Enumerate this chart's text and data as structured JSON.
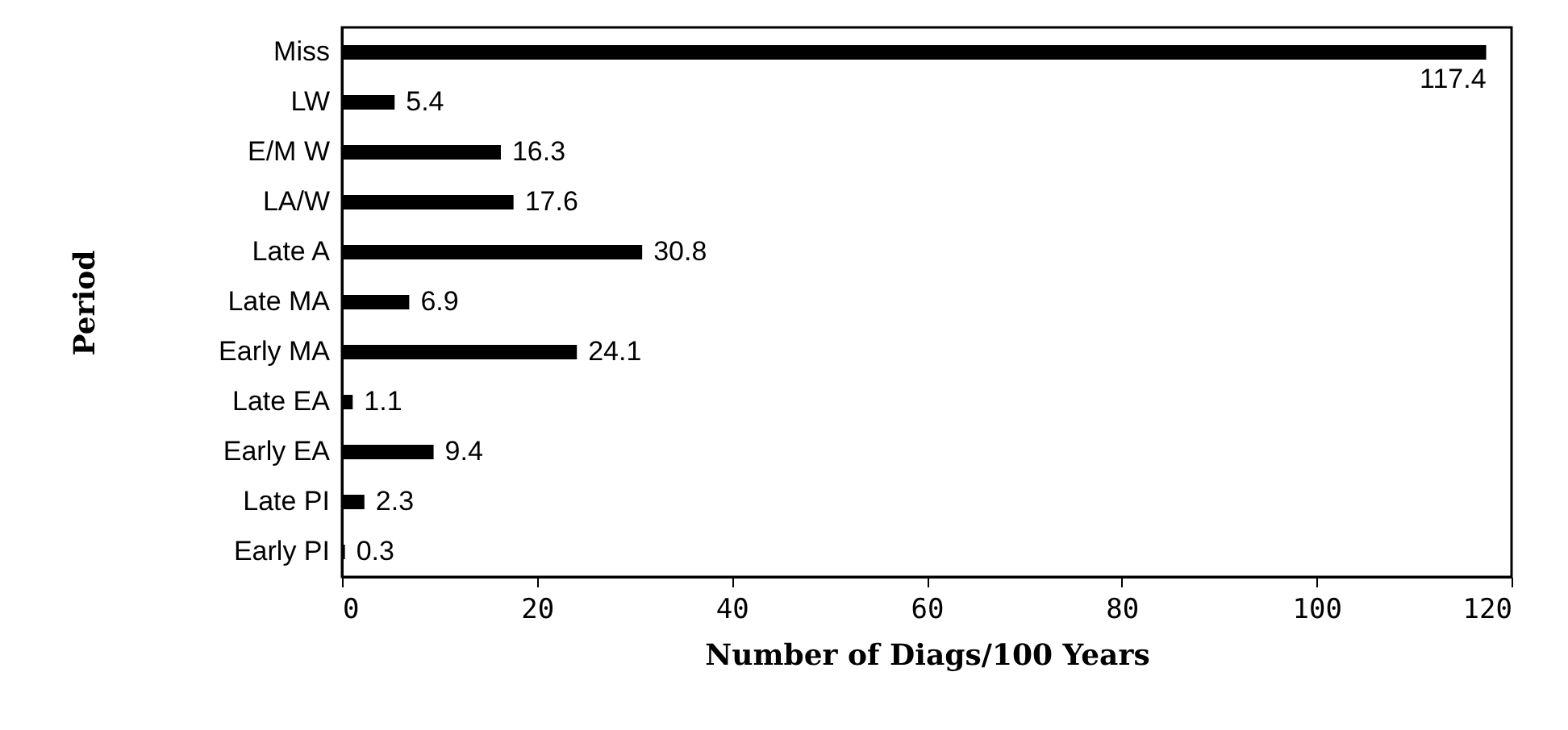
{
  "chart_data": {
    "type": "bar",
    "orientation": "horizontal",
    "xlabel": "Number of Diags/100 Years",
    "ylabel": "Period",
    "categories": [
      "Miss",
      "LW",
      "E/M W",
      "LA/W",
      "Late A",
      "Late MA",
      "Early MA",
      "Late EA",
      "Early EA",
      "Late PI",
      "Early PI"
    ],
    "values": [
      117.4,
      5.4,
      16.3,
      17.6,
      30.8,
      6.9,
      24.1,
      1.1,
      9.4,
      2.3,
      0.3
    ],
    "color": "#000000",
    "xlim": [
      0,
      120
    ],
    "xticks": [
      0,
      20,
      40,
      60,
      80,
      100,
      120
    ],
    "data_labels": true,
    "grid": false
  }
}
